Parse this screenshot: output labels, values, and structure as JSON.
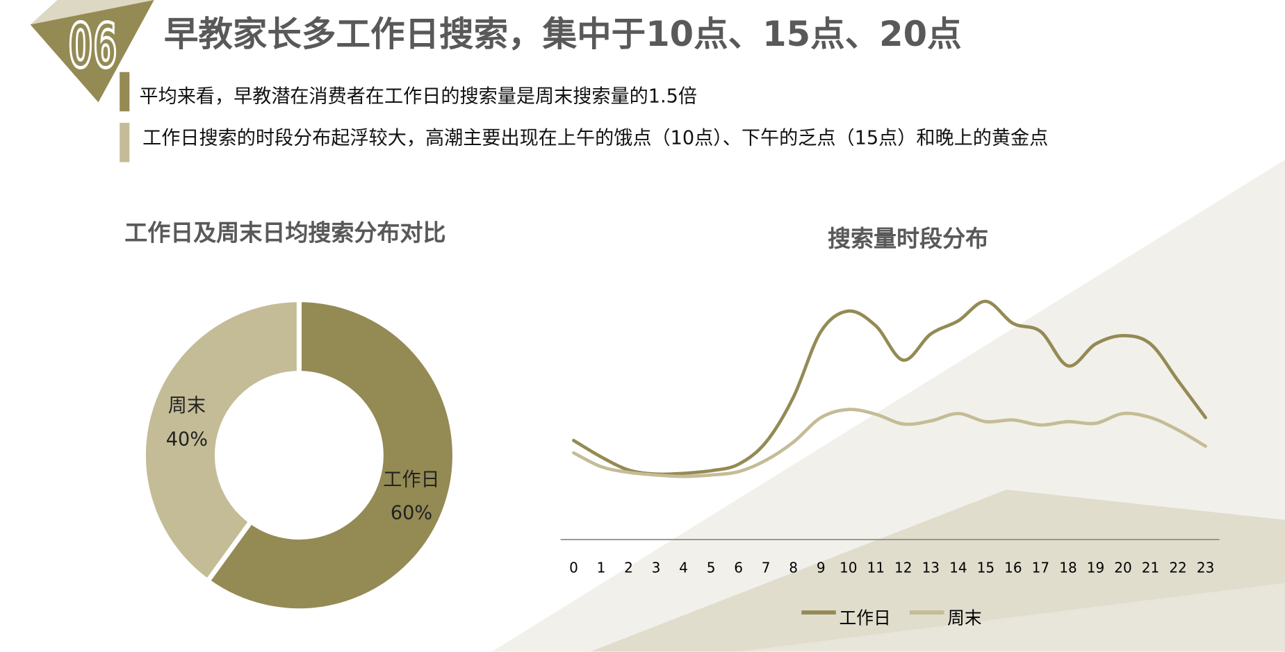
{
  "header": {
    "section_number": "06",
    "title": "早教家长多工作日搜索，集中于10点、15点、20点",
    "bullets": [
      "平均来看，早教潜在消费者在工作日的搜索量是周末搜索量的1.5倍",
      "工作日搜索的时段分布起浮较大，高潮主要出现在上午的饿点（10点）、下午的乏点（15点）和晚上的黄金点"
    ]
  },
  "colors": {
    "workday": "#948a54",
    "weekend": "#c4bc96",
    "title": "#595959",
    "bg_light": "#f2f0ea",
    "bg_mid": "#e0ddcd"
  },
  "chart_data": [
    {
      "type": "pie",
      "title": "工作日及周末日均搜索分布对比",
      "donut": true,
      "slices": [
        {
          "name": "工作日",
          "value": 60,
          "label": "60%"
        },
        {
          "name": "周末",
          "value": 40,
          "label": "40%"
        }
      ]
    },
    {
      "type": "line",
      "title": "搜索量时段分布",
      "xlabel": "",
      "ylabel": "",
      "categories": [
        "0",
        "1",
        "2",
        "3",
        "4",
        "5",
        "6",
        "7",
        "8",
        "9",
        "10",
        "11",
        "12",
        "13",
        "14",
        "15",
        "16",
        "17",
        "18",
        "19",
        "20",
        "21",
        "22",
        "23"
      ],
      "ylim": [
        0,
        100
      ],
      "grid": false,
      "legend": "bottom",
      "series": [
        {
          "name": "工作日",
          "values": [
            41.6,
            34.7,
            29.2,
            27.5,
            27.8,
            28.9,
            31.6,
            40.9,
            59.8,
            87.3,
            95.9,
            89.7,
            75.3,
            86.3,
            91.8,
            100,
            90.7,
            87.3,
            72.9,
            82.1,
            85.6,
            82.1,
            66.7,
            51.2
          ]
        },
        {
          "name": "周末",
          "values": [
            36.4,
            30.6,
            28.2,
            27.1,
            26.5,
            27.1,
            28.5,
            33.3,
            40.9,
            51.2,
            54.6,
            52.6,
            48.5,
            49.8,
            52.9,
            49.5,
            50.2,
            48.1,
            49.5,
            48.8,
            52.9,
            51.2,
            46.0,
            39.2
          ]
        }
      ]
    }
  ]
}
